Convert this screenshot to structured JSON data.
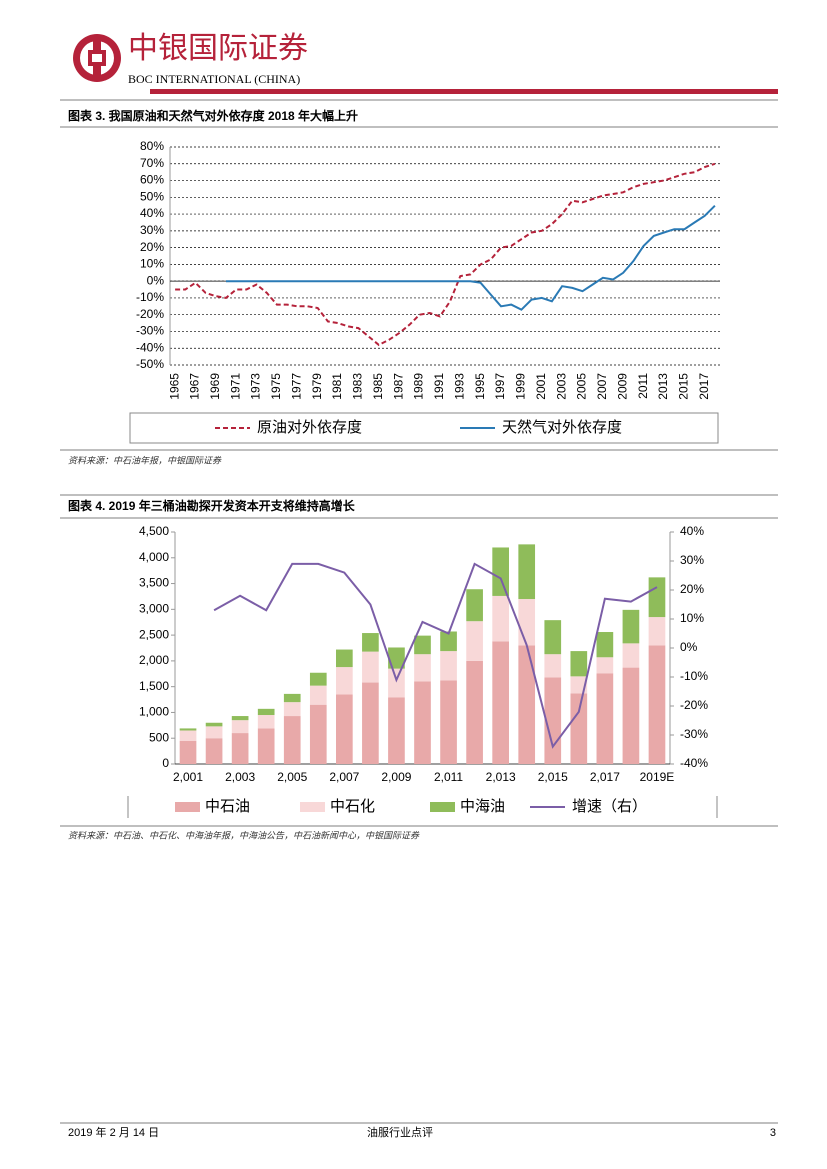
{
  "header": {
    "brand": "中银国际证券",
    "brand_en": "BOC INTERNATIONAL (CHINA)"
  },
  "chart_data": [
    {
      "type": "line",
      "title": "图表 3. 我国原油和天然气对外依存度 2018 年大幅上升",
      "source": "资料来源：中石油年报，中银国际证券",
      "categories": [
        "1965",
        null,
        "1967",
        null,
        "1969",
        null,
        "1971",
        null,
        "1973",
        null,
        "1975",
        null,
        "1977",
        null,
        "1979",
        null,
        "1981",
        null,
        "1983",
        null,
        "1985",
        null,
        "1987",
        null,
        "1989",
        null,
        "1991",
        null,
        "1993",
        null,
        "1995",
        null,
        "1997",
        null,
        "1999",
        null,
        "2001",
        null,
        "2003",
        null,
        "2005",
        null,
        "2007",
        null,
        "2009",
        null,
        "2011",
        null,
        "2013",
        null,
        "2015",
        null,
        "2017",
        null
      ],
      "series": [
        {
          "name": "原油对外依存度",
          "color": "#b5223a",
          "dash": true,
          "values": [
            -5,
            -5,
            -1,
            -7,
            -9,
            -10,
            -5,
            -5,
            -2,
            -7,
            -14,
            -14,
            -15,
            -15,
            -16,
            -24,
            -25,
            -27,
            -28,
            -33,
            -38,
            -35,
            -31,
            -26,
            -20,
            -19,
            -21,
            -12,
            3,
            4,
            10,
            13,
            20,
            21,
            25,
            29,
            30,
            34,
            40,
            48,
            47,
            49,
            51,
            52,
            53,
            56,
            58,
            59,
            60,
            62,
            64,
            65,
            68,
            70
          ]
        },
        {
          "name": "天然气对外依存度",
          "color": "#2a7ab5",
          "dash": false,
          "values": [
            null,
            null,
            null,
            null,
            null,
            0,
            0,
            0,
            0,
            0,
            0,
            0,
            0,
            0,
            0,
            0,
            0,
            0,
            0,
            0,
            0,
            0,
            0,
            0,
            0,
            0,
            0,
            0,
            0,
            0,
            -1,
            -8,
            -15,
            -14,
            -17,
            -11,
            -10,
            -12,
            -3,
            -4,
            -6,
            -2,
            2,
            1,
            5,
            12,
            21,
            27,
            29,
            31,
            31,
            35,
            39,
            45
          ]
        }
      ],
      "ylim": [
        -50,
        80
      ],
      "yticks": [
        {
          "value": -50,
          "label": "-50%"
        },
        {
          "value": -40,
          "label": "-40%"
        },
        {
          "value": -30,
          "label": "-30%"
        },
        {
          "value": -20,
          "label": "-20%"
        },
        {
          "value": -10,
          "label": "-10%"
        },
        {
          "value": 0,
          "label": "0%"
        },
        {
          "value": 10,
          "label": "10%"
        },
        {
          "value": 20,
          "label": "20%"
        },
        {
          "value": 30,
          "label": "30%"
        },
        {
          "value": 40,
          "label": "40%"
        },
        {
          "value": 50,
          "label": "50%"
        },
        {
          "value": 60,
          "label": "60%"
        },
        {
          "value": 70,
          "label": "70%"
        },
        {
          "value": 80,
          "label": "80%"
        }
      ],
      "grid": true
    },
    {
      "type": "bar",
      "stacked": true,
      "title": "图表 4. 2019 年三桶油勘探开发资本开支将维持高增长",
      "source": "资料来源：中石油、中石化、中海油年报，中海油公告，中石油新闻中心，中银国际证券",
      "categories": [
        "2,001",
        null,
        "2,003",
        null,
        "2,005",
        null,
        "2,007",
        null,
        "2,009",
        null,
        "2,011",
        null,
        "2,013",
        null,
        "2,015",
        null,
        "2,017",
        null,
        "2019E"
      ],
      "series": [
        {
          "name": "中石油",
          "color": "#e8a9a9",
          "values": [
            450,
            500,
            600,
            690,
            930,
            1150,
            1350,
            1580,
            1290,
            1600,
            1620,
            2000,
            2380,
            2300,
            1680,
            1370,
            1760,
            1870,
            2300
          ]
        },
        {
          "name": "中石化",
          "color": "#f8d8d8",
          "values": [
            200,
            230,
            250,
            260,
            270,
            370,
            530,
            600,
            560,
            530,
            570,
            770,
            880,
            900,
            450,
            330,
            310,
            470,
            550
          ]
        },
        {
          "name": "中海油",
          "color": "#8fbc5a",
          "values": [
            40,
            70,
            80,
            120,
            160,
            250,
            340,
            360,
            410,
            360,
            380,
            620,
            940,
            1060,
            660,
            490,
            490,
            650,
            770
          ]
        },
        {
          "name": "增速（右）",
          "color": "#7b5ea7",
          "type": "line",
          "axis": "y2",
          "values": [
            null,
            13,
            18,
            13,
            29,
            29,
            26,
            15,
            -11,
            9,
            5,
            29,
            24,
            1,
            -34,
            -22,
            17,
            16,
            21
          ]
        }
      ],
      "ylim": [
        0,
        4500
      ],
      "yticks": [
        0,
        500,
        {
          "value": 1000,
          "label": "1,000"
        },
        {
          "value": 1500,
          "label": "1,500"
        },
        {
          "value": 2000,
          "label": "2,000"
        },
        {
          "value": 2500,
          "label": "2,500"
        },
        {
          "value": 3000,
          "label": "3,000"
        },
        {
          "value": 3500,
          "label": "3,500"
        },
        {
          "value": 4000,
          "label": "4,000"
        },
        {
          "value": 4500,
          "label": "4,500"
        }
      ],
      "y2lim": [
        -40,
        40
      ],
      "y2ticks": [
        {
          "value": -40,
          "label": "-40%"
        },
        {
          "value": -30,
          "label": "-30%"
        },
        {
          "value": -20,
          "label": "-20%"
        },
        {
          "value": -10,
          "label": "-10%"
        },
        {
          "value": 0,
          "label": "0%"
        },
        {
          "value": 10,
          "label": "10%"
        },
        {
          "value": 20,
          "label": "20%"
        },
        {
          "value": 30,
          "label": "30%"
        },
        {
          "value": 40,
          "label": "40%"
        }
      ],
      "grid": false
    }
  ],
  "footer": {
    "date": "2019 年 2 月 14 日",
    "report": "油服行业点评",
    "page": 3
  }
}
